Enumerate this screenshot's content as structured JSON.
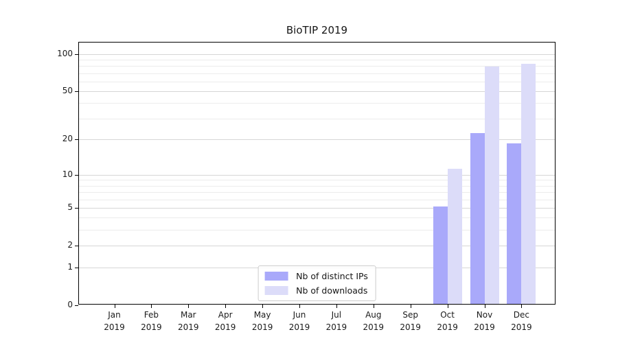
{
  "chart_data": {
    "type": "bar",
    "title": "BioTIP 2019",
    "categories": [
      {
        "m": "Jan",
        "y": "2019"
      },
      {
        "m": "Feb",
        "y": "2019"
      },
      {
        "m": "Mar",
        "y": "2019"
      },
      {
        "m": "Apr",
        "y": "2019"
      },
      {
        "m": "May",
        "y": "2019"
      },
      {
        "m": "Jun",
        "y": "2019"
      },
      {
        "m": "Jul",
        "y": "2019"
      },
      {
        "m": "Aug",
        "y": "2019"
      },
      {
        "m": "Sep",
        "y": "2019"
      },
      {
        "m": "Oct",
        "y": "2019"
      },
      {
        "m": "Nov",
        "y": "2019"
      },
      {
        "m": "Dec",
        "y": "2019"
      }
    ],
    "series": [
      {
        "name": "Nb of distinct IPs",
        "color": "#a9a9fa",
        "values": [
          0,
          0,
          0,
          0,
          0,
          0,
          0,
          0,
          0,
          5,
          22,
          18
        ]
      },
      {
        "name": "Nb of downloads",
        "color": "#dcdcf9",
        "values": [
          0,
          0,
          0,
          0,
          0,
          0,
          0,
          0,
          0,
          11,
          77,
          81
        ]
      }
    ],
    "xlabel": "",
    "ylabel": "",
    "y_scale": "log1p",
    "y_top": 124,
    "yticks": [
      0,
      1,
      2,
      5,
      10,
      20,
      50,
      100
    ],
    "minor_gridlines": [
      3,
      4,
      6,
      7,
      8,
      9,
      30,
      40,
      60,
      70,
      80,
      90
    ],
    "grid": "horizontal",
    "legend_position": "lower center"
  },
  "colors": {
    "bar_dark": "#a9a9fa",
    "bar_light": "#dcdcf9",
    "grid_major": "#d6d6d6",
    "grid_minor": "#ececec",
    "axis": "#000000",
    "background": "#ffffff"
  }
}
